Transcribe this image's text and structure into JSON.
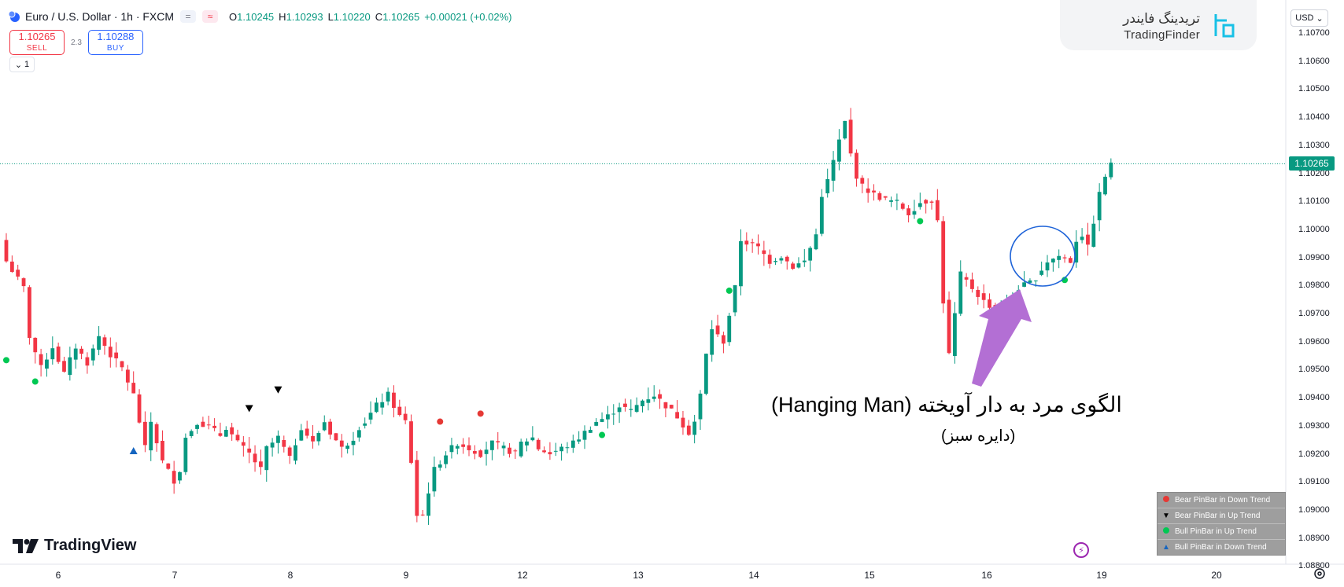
{
  "header": {
    "symbol": "Euro / U.S. Dollar · 1h · FXCM",
    "btn_a": "=",
    "btn_b": "≈",
    "ohlc": [
      {
        "label": "O",
        "value": "1.10245"
      },
      {
        "label": "H",
        "value": "1.10293"
      },
      {
        "label": "L",
        "value": "1.10220"
      },
      {
        "label": "C",
        "value": "1.10265"
      },
      {
        "label": "",
        "value": "+0.00021 (+0.02%)"
      }
    ]
  },
  "trade": {
    "sell_price": "1.10265",
    "sell_label": "SELL",
    "spread": "2.3",
    "buy_price": "1.10288",
    "buy_label": "BUY"
  },
  "collapse": {
    "count": "1"
  },
  "watermark": {
    "fa": "تریدینگ فایندر",
    "en": "TradingFinder"
  },
  "currency": "USD",
  "price_axis": {
    "labels": [
      "1.10700",
      "1.10600",
      "1.10500",
      "1.10400",
      "1.10300",
      "1.10200",
      "1.10100",
      "1.10000",
      "1.09900",
      "1.09800",
      "1.09700",
      "1.09600",
      "1.09500",
      "1.09400",
      "1.09300",
      "1.09200",
      "1.09100",
      "1.09000",
      "1.08900",
      "1.08800"
    ],
    "current": "1.10265"
  },
  "time_axis": {
    "labels": [
      "6",
      "7",
      "8",
      "9",
      "12",
      "13",
      "14",
      "15",
      "16",
      "19",
      "20"
    ]
  },
  "brand": "TradingView",
  "legend": [
    {
      "text": "Bear  PinBar in Down Trend",
      "marker": "circle",
      "color": "#e53935"
    },
    {
      "text": "Bear  PinBar in  Up  Trend",
      "marker": "triangle-down",
      "color": "#000000"
    },
    {
      "text": "Bull    PinBar in  Up  Trend",
      "marker": "circle",
      "color": "#00c853"
    },
    {
      "text": "Bull   PinBar in Down Trend",
      "marker": "triangle-up",
      "color": "#1565c0"
    }
  ],
  "annotation": {
    "title": "الگوی مرد به دار آویخته (Hanging Man)",
    "subtitle": "(دایره سبز)",
    "color": "#b36fd4"
  },
  "colors": {
    "bull": "#089981",
    "bear": "#f23645",
    "current": "#089981"
  },
  "chart_data": {
    "type": "candlestick",
    "price_range": [
      1.0879,
      1.1076
    ],
    "current_price": 1.10265,
    "time_labels": [
      "6",
      "7",
      "8",
      "9",
      "12",
      "13",
      "14",
      "15",
      "16",
      "19",
      "20"
    ],
    "points": [
      [
        0,
        1.099
      ],
      [
        3,
        1.098
      ],
      [
        4,
        1.0962
      ],
      [
        6,
        1.095
      ],
      [
        8,
        1.0958
      ],
      [
        10,
        1.0948
      ],
      [
        12,
        1.0958
      ],
      [
        14,
        1.0952
      ],
      [
        16,
        1.0962
      ],
      [
        18,
        1.0955
      ],
      [
        20,
        1.095
      ],
      [
        22,
        1.094
      ],
      [
        24,
        1.092
      ],
      [
        25,
        1.093
      ],
      [
        27,
        1.0915
      ],
      [
        29,
        1.0908
      ],
      [
        30,
        1.0912
      ],
      [
        31,
        1.0924
      ],
      [
        33,
        1.093
      ],
      [
        35,
        1.0928
      ],
      [
        37,
        1.0925
      ],
      [
        38,
        1.0928
      ],
      [
        40,
        1.0922
      ],
      [
        42,
        1.0918
      ],
      [
        44,
        1.0912
      ],
      [
        45,
        1.092
      ],
      [
        47,
        1.0924
      ],
      [
        49,
        1.0916
      ],
      [
        51,
        1.0928
      ],
      [
        53,
        1.0922
      ],
      [
        55,
        1.093
      ],
      [
        56,
        1.0926
      ],
      [
        58,
        1.092
      ],
      [
        60,
        1.0924
      ],
      [
        61,
        1.0928
      ],
      [
        62,
        1.093
      ],
      [
        64,
        1.0936
      ],
      [
        66,
        1.094
      ],
      [
        68,
        1.0932
      ],
      [
        69,
        1.093
      ],
      [
        70,
        1.0915
      ],
      [
        71,
        1.0895
      ],
      [
        72,
        1.0895
      ],
      [
        73,
        1.0904
      ],
      [
        74,
        1.0912
      ],
      [
        76,
        1.0918
      ],
      [
        78,
        1.0922
      ],
      [
        80,
        1.092
      ],
      [
        82,
        1.0918
      ],
      [
        84,
        1.0922
      ],
      [
        86,
        1.092
      ],
      [
        88,
        1.0918
      ],
      [
        89,
        1.0922
      ],
      [
        91,
        1.0924
      ],
      [
        92,
        1.092
      ],
      [
        94,
        1.0918
      ],
      [
        96,
        1.092
      ],
      [
        98,
        1.0922
      ],
      [
        100,
        1.0926
      ],
      [
        102,
        1.093
      ],
      [
        104,
        1.0932
      ],
      [
        106,
        1.0936
      ],
      [
        108,
        1.0934
      ],
      [
        110,
        1.0938
      ],
      [
        112,
        1.094
      ],
      [
        114,
        1.0936
      ],
      [
        116,
        1.0932
      ],
      [
        118,
        1.0926
      ],
      [
        119,
        1.093
      ],
      [
        120,
        1.094
      ],
      [
        121,
        1.0955
      ],
      [
        122,
        1.0965
      ],
      [
        123,
        1.0962
      ],
      [
        124,
        1.096
      ],
      [
        125,
        1.097
      ],
      [
        126,
        1.098
      ],
      [
        127,
        1.0998
      ],
      [
        128,
        1.0997
      ],
      [
        130,
        1.0995
      ],
      [
        132,
        1.099
      ],
      [
        134,
        1.0992
      ],
      [
        136,
        1.0988
      ],
      [
        138,
        1.099
      ],
      [
        140,
        1.1
      ],
      [
        141,
        1.1015
      ],
      [
        142,
        1.102
      ],
      [
        144,
        1.1035
      ],
      [
        145,
        1.1042
      ],
      [
        146,
        1.103
      ],
      [
        147,
        1.1022
      ],
      [
        148,
        1.1018
      ],
      [
        150,
        1.1015
      ],
      [
        152,
        1.1013
      ],
      [
        154,
        1.1012
      ],
      [
        156,
        1.1008
      ],
      [
        158,
        1.1012
      ],
      [
        160,
        1.1013
      ],
      [
        161,
        1.1005
      ],
      [
        162,
        1.0975
      ],
      [
        163,
        1.0955
      ],
      [
        164,
        1.097
      ],
      [
        165,
        1.0985
      ],
      [
        167,
        1.098
      ],
      [
        169,
        1.0975
      ],
      [
        171,
        1.0972
      ],
      [
        173,
        1.0975
      ],
      [
        175,
        1.098
      ],
      [
        177,
        1.0982
      ],
      [
        178,
        1.0984
      ],
      [
        180,
        1.099
      ],
      [
        182,
        1.0992
      ],
      [
        184,
        1.099
      ],
      [
        185,
        1.0998
      ],
      [
        186,
        1.1
      ],
      [
        187,
        1.0995
      ],
      [
        188,
        1.1005
      ],
      [
        189,
        1.1015
      ],
      [
        190,
        1.1022
      ],
      [
        191,
        1.1026
      ]
    ],
    "signals": [
      {
        "type": "bull_up",
        "idx": 0,
        "price": 1.0953
      },
      {
        "type": "bull_up",
        "idx": 5,
        "price": 1.0945
      },
      {
        "type": "bull_down",
        "idx": 22,
        "price": 1.0919
      },
      {
        "type": "bear_up",
        "idx": 42,
        "price": 1.0935
      },
      {
        "type": "bear_up",
        "idx": 47,
        "price": 1.0942
      },
      {
        "type": "bear_down",
        "idx": 75,
        "price": 1.093
      },
      {
        "type": "bear_down",
        "idx": 82,
        "price": 1.0933
      },
      {
        "type": "bull_up",
        "idx": 103,
        "price": 1.0925
      },
      {
        "type": "bull_up",
        "idx": 125,
        "price": 1.0979
      },
      {
        "type": "bull_up",
        "idx": 158,
        "price": 1.1005
      },
      {
        "type": "bull_up",
        "idx": 183,
        "price": 1.0983
      }
    ]
  }
}
